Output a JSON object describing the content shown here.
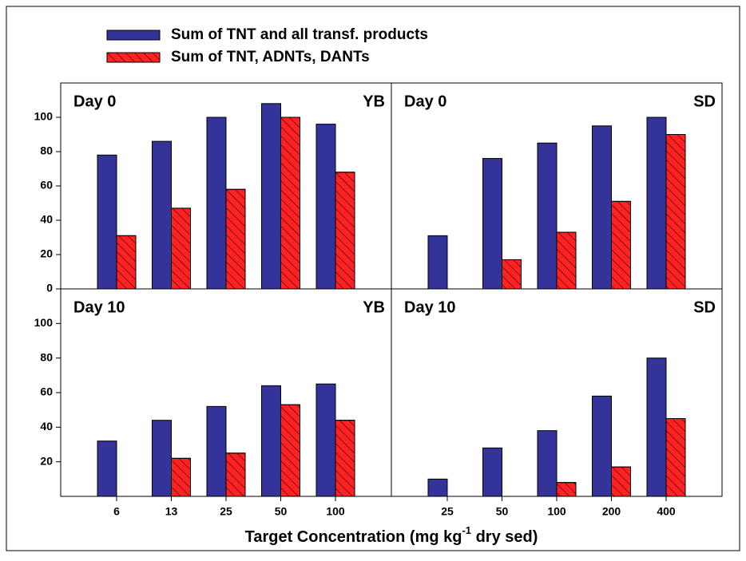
{
  "xlabel": [
    "Target Concentration (mg kg",
    "-1",
    " dry sed)"
  ],
  "chart_data": [
    {
      "type": "bar",
      "title": "Day 0",
      "subtitle": "YB",
      "series": [
        {
          "name": "Sum of TNT and all transf. products",
          "color": "#333399",
          "values": [
            78,
            86,
            100,
            108,
            96
          ]
        },
        {
          "name": "Sum of TNT, ADNTs, DANTs",
          "color": "#ff2222",
          "values": [
            31,
            47,
            58,
            100,
            68
          ]
        }
      ],
      "ylim": [
        0,
        120
      ],
      "yticks": [
        0,
        20,
        40,
        60,
        80,
        100
      ]
    },
    {
      "type": "bar",
      "title": "Day 0",
      "subtitle": "SD",
      "series": [
        {
          "color": "#333399",
          "values": [
            31,
            76,
            85,
            95,
            100
          ]
        },
        {
          "color": "#ff2222",
          "values": [
            null,
            17,
            33,
            51,
            90
          ]
        }
      ],
      "ylim": [
        0,
        120
      ]
    },
    {
      "type": "bar",
      "title": "Day 10",
      "subtitle": "YB",
      "categories": [
        "6",
        "13",
        "25",
        "50",
        "100"
      ],
      "series": [
        {
          "color": "#333399",
          "values": [
            32,
            44,
            52,
            64,
            65
          ]
        },
        {
          "color": "#ff2222",
          "values": [
            null,
            22,
            25,
            53,
            44
          ]
        }
      ],
      "ylim": [
        0,
        120
      ],
      "yticks": [
        20,
        40,
        60,
        80,
        100
      ]
    },
    {
      "type": "bar",
      "title": "Day 10",
      "subtitle": "SD",
      "categories": [
        "25",
        "50",
        "100",
        "200",
        "400"
      ],
      "series": [
        {
          "color": "#333399",
          "values": [
            10,
            28,
            38,
            58,
            80
          ]
        },
        {
          "color": "#ff2222",
          "values": [
            null,
            null,
            8,
            17,
            45
          ]
        }
      ],
      "ylim": [
        0,
        120
      ]
    }
  ]
}
